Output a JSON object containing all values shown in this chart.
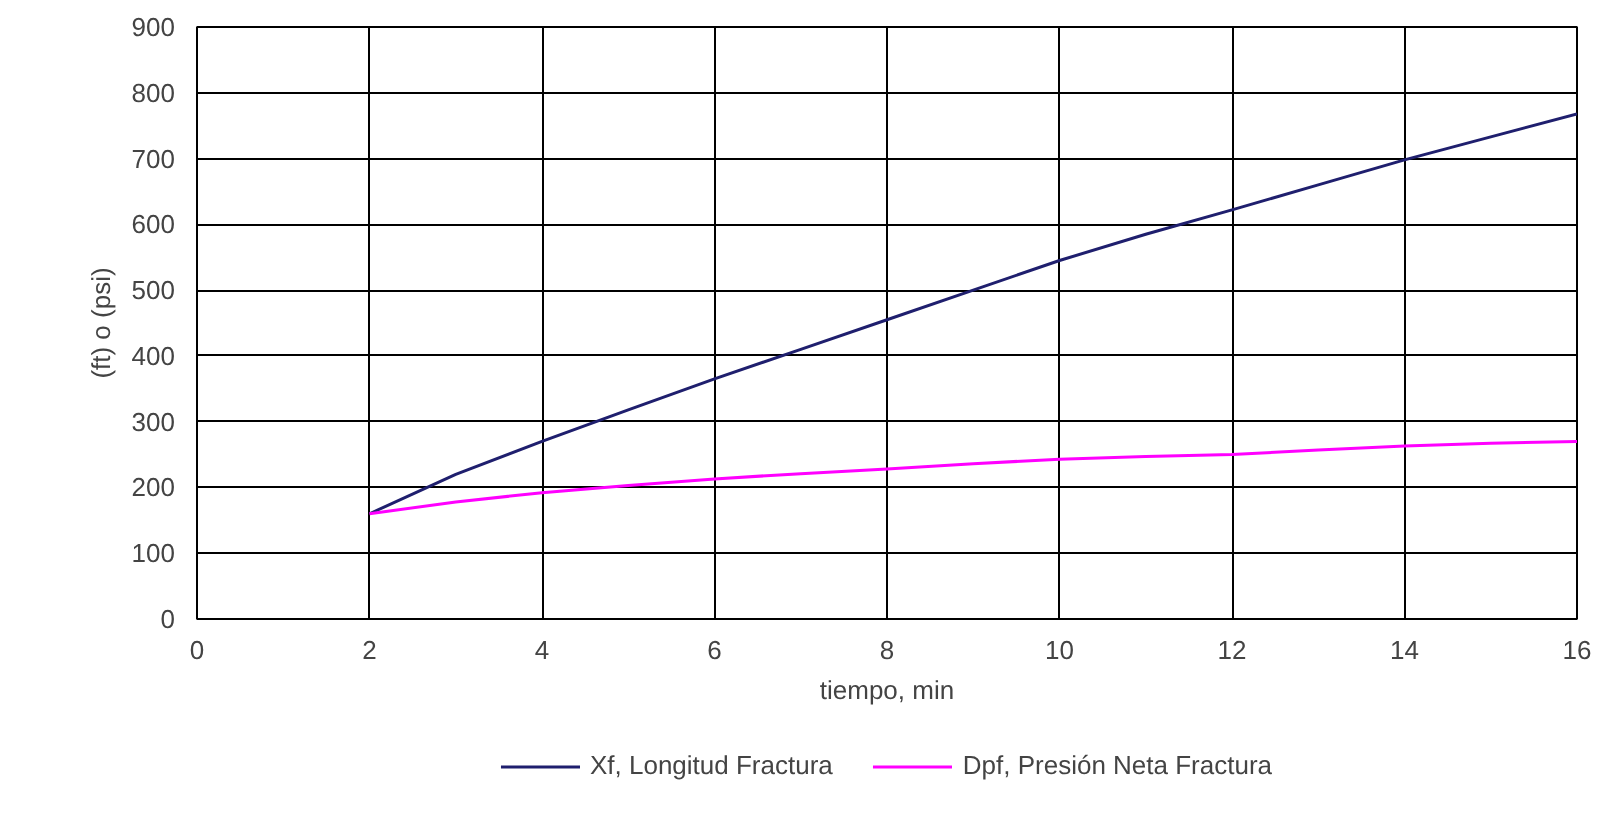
{
  "chart_data": {
    "type": "line",
    "xlabel": "tiempo, min",
    "ylabel": "(ft) o (psi)",
    "x": [
      2,
      3,
      4,
      5,
      6,
      7,
      8,
      9,
      10,
      11,
      12,
      13,
      14,
      15,
      16
    ],
    "series": [
      {
        "name": "Xf, Longitud Fractura",
        "color": "#1f1f6e",
        "values": [
          160,
          220,
          270,
          318,
          365,
          410,
          455,
          500,
          545,
          585,
          622,
          660,
          698,
          733,
          768
        ]
      },
      {
        "name": "Dpf, Presión Neta Fractura",
        "color": "#ff00ff",
        "values": [
          160,
          178,
          192,
          203,
          213,
          221,
          228,
          236,
          243,
          247,
          250,
          257,
          263,
          267,
          270
        ]
      }
    ],
    "xlim": [
      0,
      16
    ],
    "xticks": [
      0,
      2,
      4,
      6,
      8,
      10,
      12,
      14,
      16
    ],
    "ylim": [
      0,
      900
    ],
    "yticks": [
      0,
      100,
      200,
      300,
      400,
      500,
      600,
      700,
      800,
      900
    ],
    "grid": true,
    "legend": "bottom",
    "line_style": "solid",
    "marker": "none"
  }
}
